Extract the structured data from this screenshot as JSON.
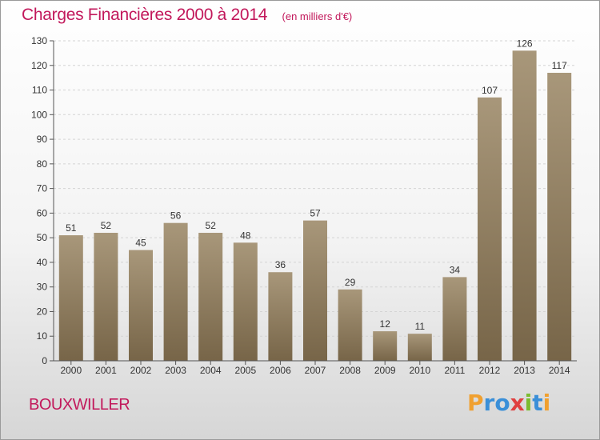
{
  "header": {
    "title": "Charges Financières 2000 à 2014",
    "unit": "(en milliers d'€)"
  },
  "footer": {
    "town": "BOUXWILLER",
    "logo_letters": [
      "P",
      "r",
      "o",
      "x",
      "i",
      "t",
      "i"
    ]
  },
  "colors": {
    "accent": "#c2185b",
    "bar_top": "#a8977a",
    "bar_bottom": "#776548"
  },
  "chart_data": {
    "type": "bar",
    "categories": [
      "2000",
      "2001",
      "2002",
      "2003",
      "2004",
      "2005",
      "2006",
      "2007",
      "2008",
      "2009",
      "2010",
      "2011",
      "2012",
      "2013",
      "2014"
    ],
    "values": [
      51,
      52,
      45,
      56,
      52,
      48,
      36,
      57,
      29,
      12,
      11,
      34,
      107,
      126,
      117
    ],
    "title": "Charges Financières 2000 à 2014",
    "ylim": [
      0,
      130
    ],
    "yticks": [
      0,
      10,
      20,
      30,
      40,
      50,
      60,
      70,
      80,
      90,
      100,
      110,
      120,
      130
    ],
    "grid": true,
    "data_labels": true
  }
}
